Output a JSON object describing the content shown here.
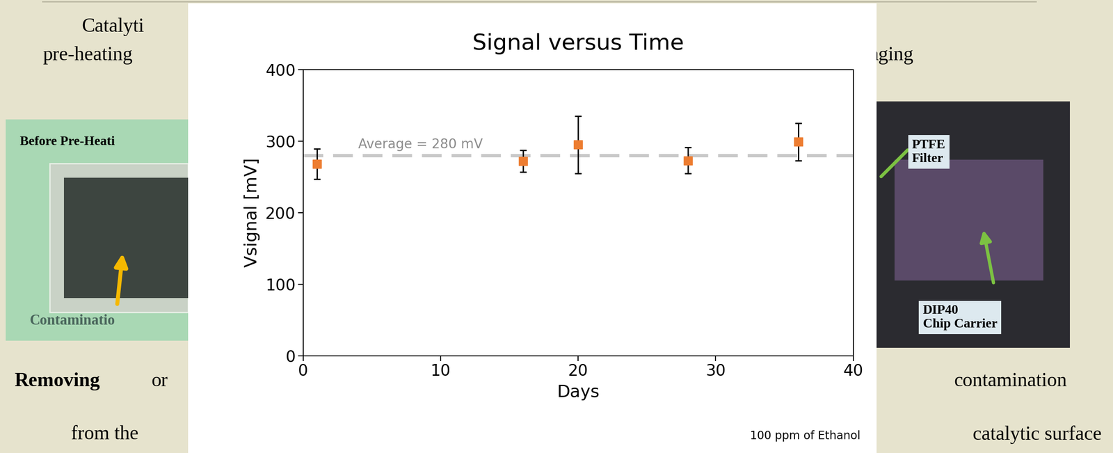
{
  "chart_data": {
    "type": "scatter",
    "title": "Signal versus Time",
    "x_label": "Days",
    "y_label": "Vsignal [mV]",
    "x": [
      1,
      16,
      20,
      28,
      36
    ],
    "values": [
      268,
      272,
      295,
      273,
      299
    ],
    "errors": [
      21,
      15,
      40,
      18,
      26
    ],
    "color": "#ed7d31",
    "marker": "square",
    "xlim": [
      0,
      40
    ],
    "xticks": [
      0,
      10,
      20,
      30,
      40
    ],
    "ylim": [
      0,
      400
    ],
    "yticks": [
      0,
      100,
      200,
      300,
      400
    ],
    "grid": false,
    "average": {
      "value": 280,
      "label": "Average = 280 mV",
      "color": "#c8c8c8",
      "line_style": "dashed"
    },
    "note": "100 ppm of Ethanol"
  },
  "slide": {
    "top_left_1": "Catalyti",
    "top_left_2": "pre-heating",
    "top_right": "aging",
    "bottom_left_bold": "Removing",
    "bottom_left_rest": "or",
    "bottom_left_2": "from the",
    "bottom_right_1": "contamination",
    "bottom_right_2": "catalytic surface",
    "image_left_caption": "Before Pre-Heati",
    "image_left_label": "Contaminatio",
    "image_right_label_1": "PTFE\nFilter",
    "image_right_label_2": "DIP40\nChip Carrier"
  }
}
